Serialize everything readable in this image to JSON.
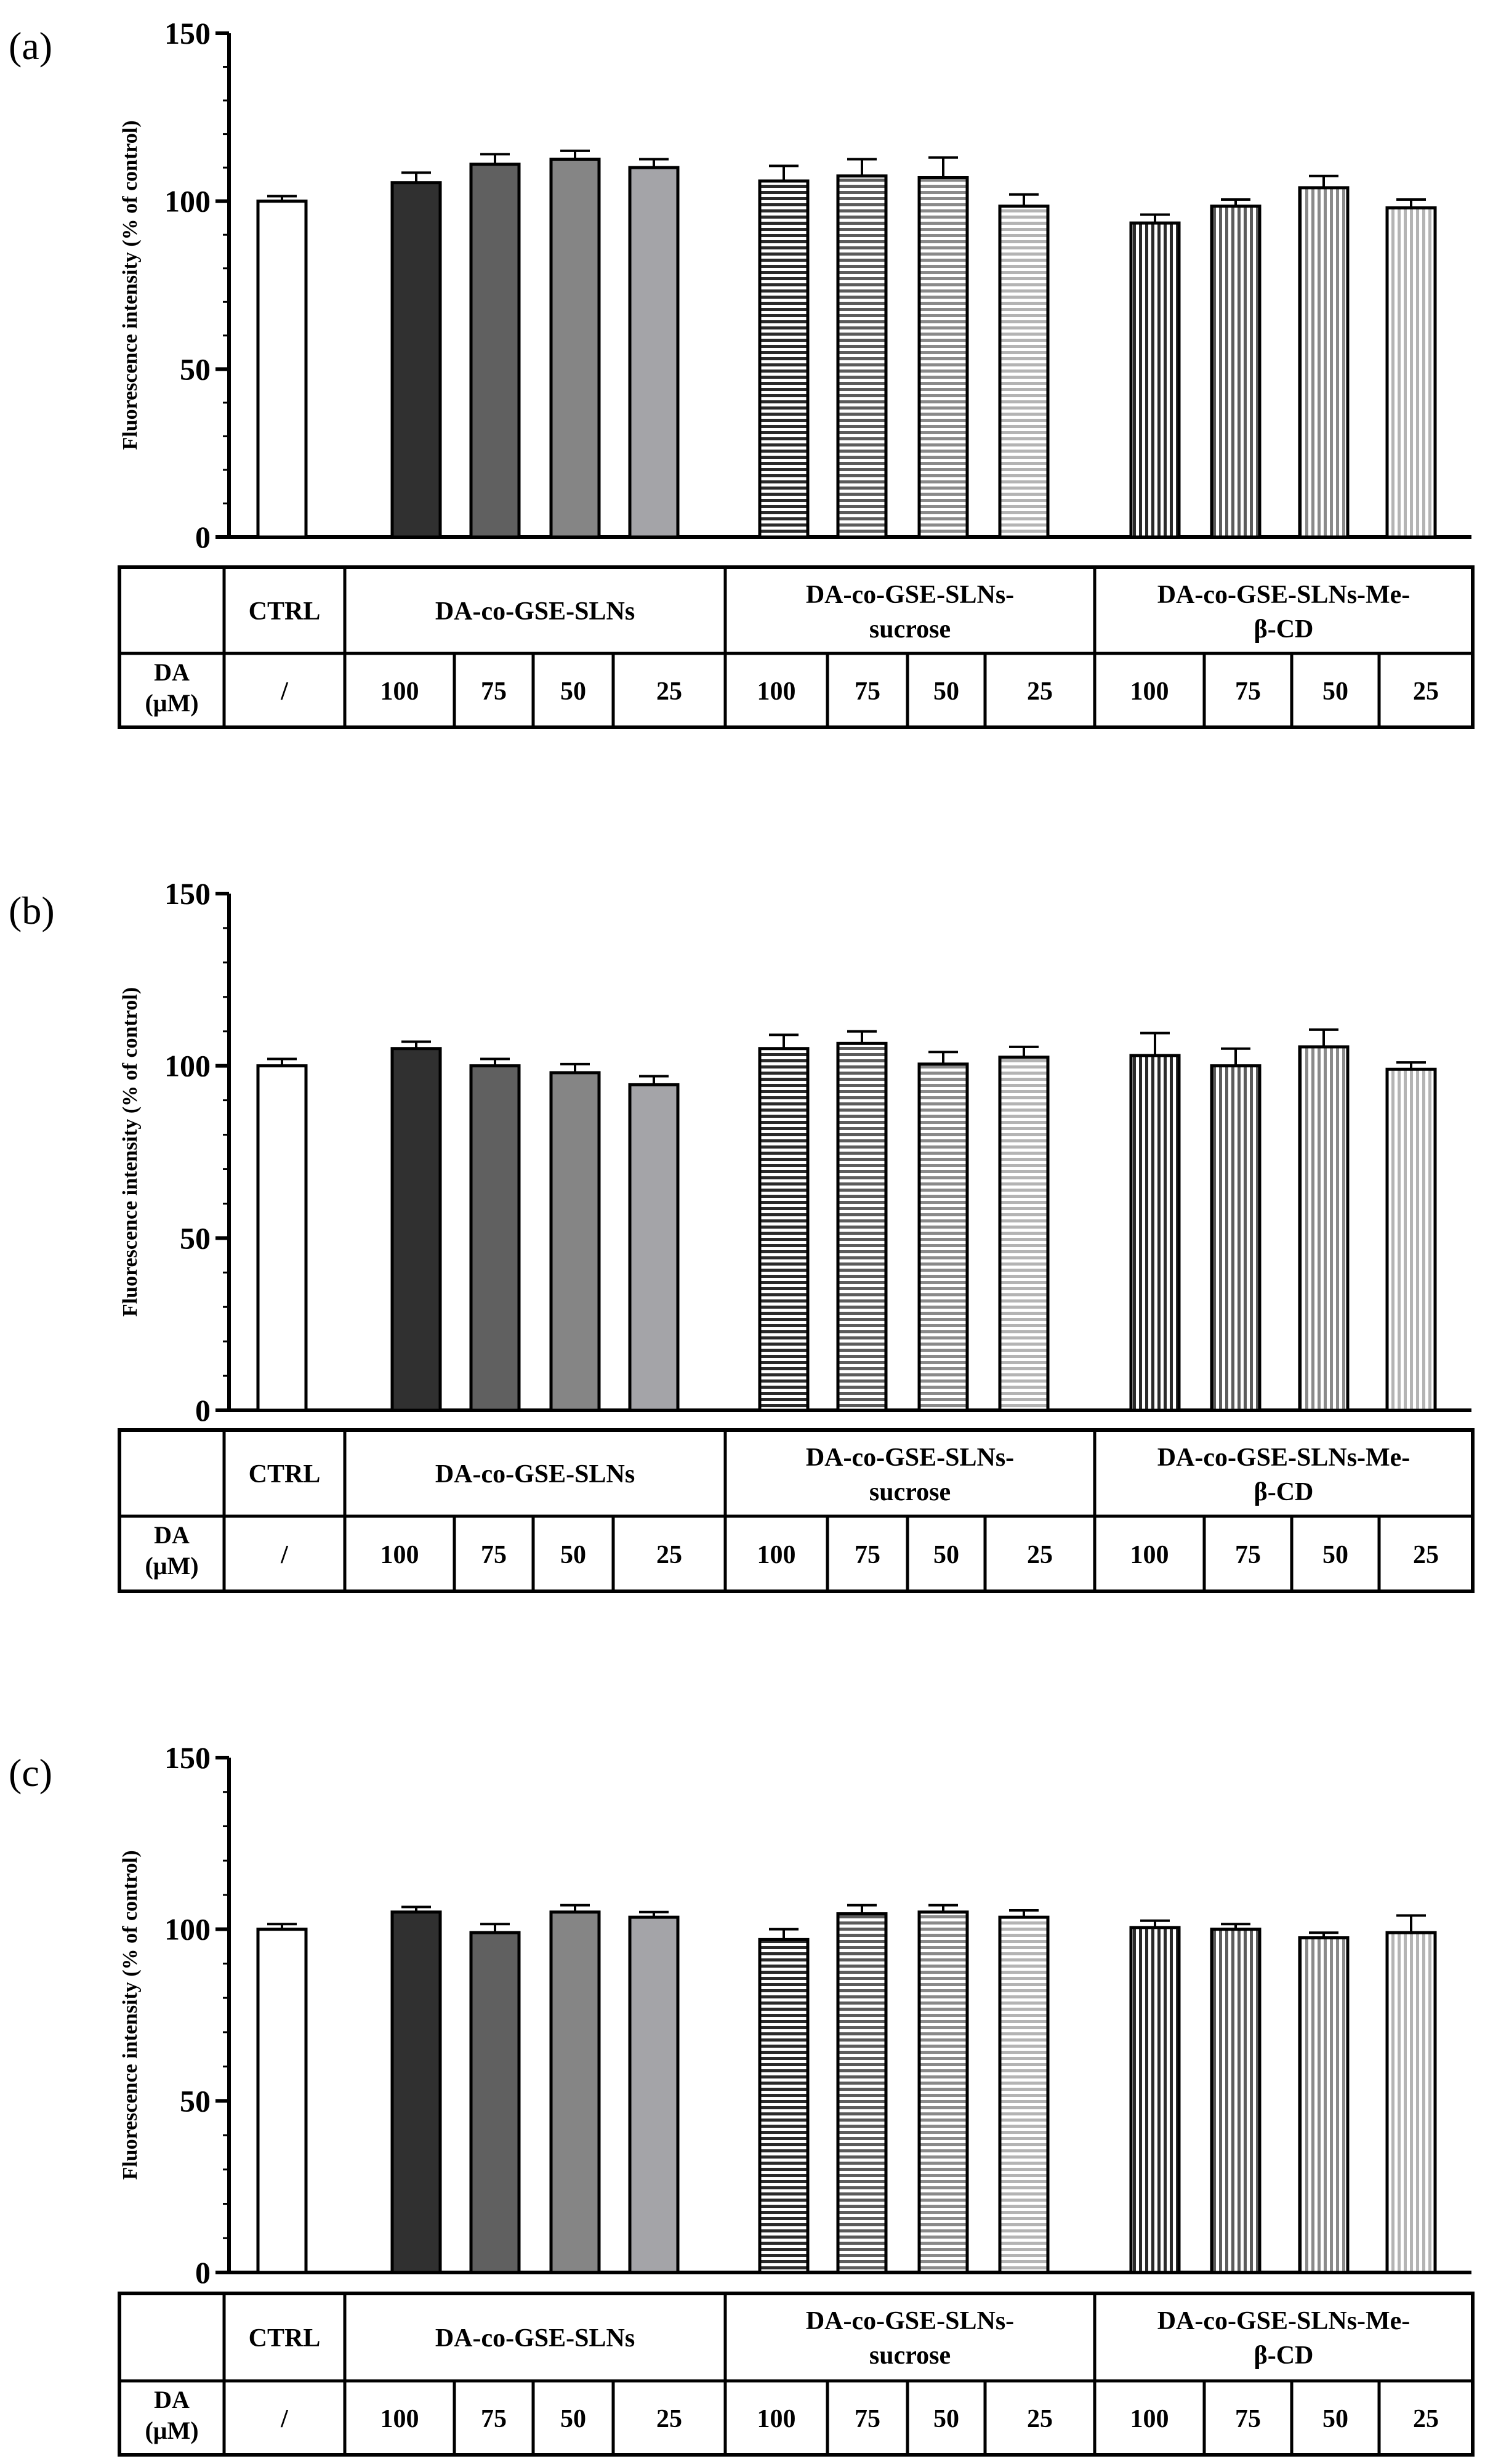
{
  "colors": {
    "ctrl": "#ffffff",
    "solid": [
      "#303030",
      "#606060",
      "#858585",
      "#a4a4a8"
    ],
    "stripe": [
      "#2a2a2a",
      "#5c5c5c",
      "#8a8a8a",
      "#b4b4b4"
    ],
    "stroke": "#000000"
  },
  "chart_data": [
    {
      "type": "bar",
      "panel_label": "(a)",
      "ylabel": "Fluorescence intensity (% of control)",
      "ylim": [
        0,
        150
      ],
      "yticks": [
        "0",
        "50",
        "100",
        "150"
      ],
      "table": {
        "row_label_da": "DA",
        "row_label_unit": "(μM)",
        "groups": [
          {
            "line1": "CTRL",
            "line2": ""
          },
          {
            "line1": "DA-co-GSE-SLNs",
            "line2": ""
          },
          {
            "line1": "DA-co-GSE-SLNs-",
            "line2": "sucrose"
          },
          {
            "line1": "DA-co-GSE-SLNs-Me-",
            "line2": "β-CD"
          }
        ],
        "doses": [
          "/",
          "100",
          "75",
          "50",
          "25",
          "100",
          "75",
          "50",
          "25",
          "100",
          "75",
          "50",
          "25"
        ]
      },
      "bars": [
        {
          "value": 100,
          "error": 1.5
        },
        {
          "value": 105.5,
          "error": 3
        },
        {
          "value": 111,
          "error": 3
        },
        {
          "value": 112.5,
          "error": 2.5
        },
        {
          "value": 110,
          "error": 2.5
        },
        {
          "value": 106,
          "error": 4.5
        },
        {
          "value": 107.5,
          "error": 5
        },
        {
          "value": 107,
          "error": 6
        },
        {
          "value": 98.5,
          "error": 3.5
        },
        {
          "value": 93.5,
          "error": 2.5
        },
        {
          "value": 98.5,
          "error": 2
        },
        {
          "value": 104,
          "error": 3.5
        },
        {
          "value": 98,
          "error": 2.5
        }
      ]
    },
    {
      "type": "bar",
      "panel_label": "(b)",
      "ylabel": "Fluorescence intensity (% of control)",
      "ylim": [
        0,
        150
      ],
      "yticks": [
        "0",
        "50",
        "100",
        "150"
      ],
      "table": {
        "row_label_da": "DA",
        "row_label_unit": "(μM)",
        "groups": [
          {
            "line1": "CTRL",
            "line2": ""
          },
          {
            "line1": "DA-co-GSE-SLNs",
            "line2": ""
          },
          {
            "line1": "DA-co-GSE-SLNs-",
            "line2": "sucrose"
          },
          {
            "line1": "DA-co-GSE-SLNs-Me-",
            "line2": "β-CD"
          }
        ],
        "doses": [
          "/",
          "100",
          "75",
          "50",
          "25",
          "100",
          "75",
          "50",
          "25",
          "100",
          "75",
          "50",
          "25"
        ]
      },
      "bars": [
        {
          "value": 100,
          "error": 2
        },
        {
          "value": 105,
          "error": 2
        },
        {
          "value": 100,
          "error": 2
        },
        {
          "value": 98,
          "error": 2.5
        },
        {
          "value": 94.5,
          "error": 2.5
        },
        {
          "value": 105,
          "error": 4
        },
        {
          "value": 106.5,
          "error": 3.5
        },
        {
          "value": 100.5,
          "error": 3.5
        },
        {
          "value": 102.5,
          "error": 3
        },
        {
          "value": 103,
          "error": 6.5
        },
        {
          "value": 100,
          "error": 5
        },
        {
          "value": 105.5,
          "error": 5
        },
        {
          "value": 99,
          "error": 2
        }
      ]
    },
    {
      "type": "bar",
      "panel_label": "(c)",
      "ylabel": "Fluorescence intensity (% of control)",
      "ylim": [
        0,
        150
      ],
      "yticks": [
        "0",
        "50",
        "100",
        "150"
      ],
      "table": {
        "row_label_da": "DA",
        "row_label_unit": "(μM)",
        "groups": [
          {
            "line1": "CTRL",
            "line2": ""
          },
          {
            "line1": "DA-co-GSE-SLNs",
            "line2": ""
          },
          {
            "line1": "DA-co-GSE-SLNs-",
            "line2": "sucrose"
          },
          {
            "line1": "DA-co-GSE-SLNs-Me-",
            "line2": "β-CD"
          }
        ],
        "doses": [
          "/",
          "100",
          "75",
          "50",
          "25",
          "100",
          "75",
          "50",
          "25",
          "100",
          "75",
          "50",
          "25"
        ]
      },
      "bars": [
        {
          "value": 100,
          "error": 1.5
        },
        {
          "value": 105,
          "error": 1.5
        },
        {
          "value": 99,
          "error": 2.5
        },
        {
          "value": 105,
          "error": 2
        },
        {
          "value": 103.5,
          "error": 1.5
        },
        {
          "value": 97,
          "error": 3
        },
        {
          "value": 104.5,
          "error": 2.5
        },
        {
          "value": 105,
          "error": 2
        },
        {
          "value": 103.5,
          "error": 2
        },
        {
          "value": 100.5,
          "error": 2
        },
        {
          "value": 100,
          "error": 1.5
        },
        {
          "value": 97.5,
          "error": 1.5
        },
        {
          "value": 99,
          "error": 5
        }
      ]
    }
  ]
}
